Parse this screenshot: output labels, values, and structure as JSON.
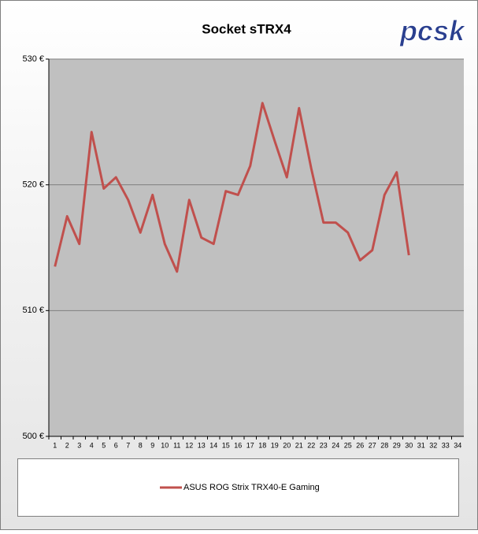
{
  "chart_data": {
    "type": "line",
    "title": "Socket sTRX4",
    "logo": "pcsk",
    "categories": [
      "1",
      "2",
      "3",
      "4",
      "5",
      "6",
      "7",
      "8",
      "9",
      "10",
      "11",
      "12",
      "13",
      "14",
      "15",
      "16",
      "17",
      "18",
      "19",
      "20",
      "21",
      "22",
      "23",
      "24",
      "25",
      "26",
      "27",
      "28",
      "29",
      "30",
      "31",
      "32",
      "33",
      "34"
    ],
    "series": [
      {
        "name": "ASUS ROG Strix TRX40-E Gaming",
        "color": "#c0504d",
        "values": [
          513.5,
          517.5,
          515.3,
          524.2,
          519.7,
          520.6,
          518.8,
          516.2,
          519.2,
          515.3,
          513.1,
          518.8,
          515.8,
          515.3,
          519.5,
          519.2,
          521.5,
          526.5,
          523.5,
          520.6,
          526.1,
          521.3,
          517.0,
          517.0,
          516.2,
          514.0,
          514.8,
          519.2,
          521.0,
          514.4,
          null,
          null,
          null,
          null
        ]
      }
    ],
    "ylim": [
      500,
      530
    ],
    "yticks": [
      {
        "value": 500,
        "label": "500 €"
      },
      {
        "value": 510,
        "label": "510 €"
      },
      {
        "value": 520,
        "label": "520 €"
      },
      {
        "value": 530,
        "label": "530 €"
      }
    ],
    "grid": true
  }
}
